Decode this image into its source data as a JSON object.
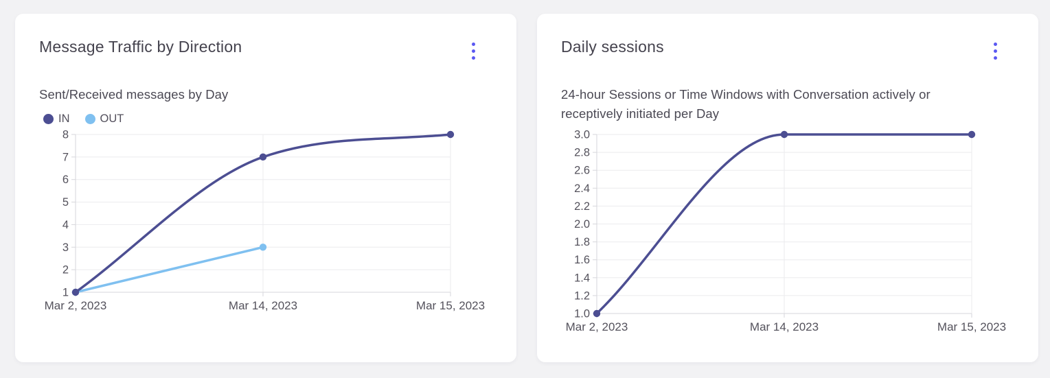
{
  "colors": {
    "page_bg": "#f2f2f4",
    "card_bg": "#ffffff",
    "accent": "#5a58f2",
    "grid": "#ebebee",
    "axis": "#d6d6db",
    "tick_text": "#54525c",
    "series_in": "#4c4e92",
    "series_out": "#7fc0f0"
  },
  "cards": [
    {
      "title": "Message Traffic by Direction",
      "subtitle": "Sent/Received messages by Day",
      "menu_icon": "kebab-menu-icon"
    },
    {
      "title": "Daily sessions",
      "subtitle": "24-hour Sessions or Time Windows with Conversation actively or\nreceptively initiated per Day",
      "menu_icon": "kebab-menu-icon"
    }
  ],
  "chart_data": [
    {
      "type": "line",
      "title": "Message Traffic by Direction",
      "subtitle": "Sent/Received messages by Day",
      "categories": [
        "Mar 2, 2023",
        "Mar 14, 2023",
        "Mar 15, 2023"
      ],
      "series": [
        {
          "name": "IN",
          "color": "#4c4e92",
          "values": [
            1,
            7,
            8
          ]
        },
        {
          "name": "OUT",
          "color": "#7fc0f0",
          "values": [
            1,
            3,
            null
          ]
        }
      ],
      "xlabel": "",
      "ylabel": "",
      "ylim": [
        1,
        8
      ],
      "ytick_step": 1,
      "ytick_decimals": 0,
      "grid": true,
      "legend_position": "top-left",
      "curve": "monotone",
      "markers": true
    },
    {
      "type": "line",
      "title": "Daily sessions",
      "subtitle": "24-hour Sessions or Time Windows with Conversation actively or receptively initiated per Day",
      "categories": [
        "Mar 2, 2023",
        "Mar 14, 2023",
        "Mar 15, 2023"
      ],
      "series": [
        {
          "name": "Daily sessions",
          "color": "#4c4e92",
          "values": [
            1.0,
            3.0,
            3.0
          ]
        }
      ],
      "xlabel": "",
      "ylabel": "",
      "ylim": [
        1.0,
        3.0
      ],
      "ytick_step": 0.2,
      "ytick_decimals": 1,
      "grid": true,
      "legend_position": "none",
      "curve": "monotone",
      "markers": true
    }
  ]
}
